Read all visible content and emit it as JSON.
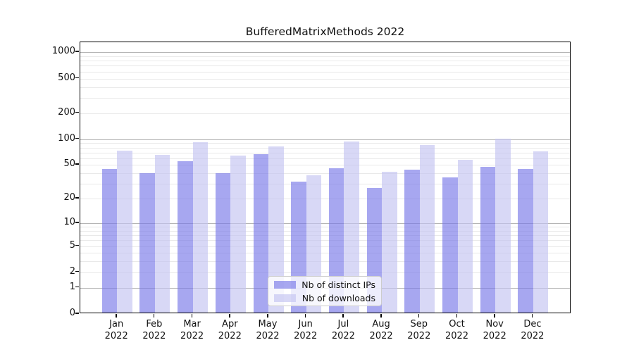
{
  "chart_data": {
    "type": "bar",
    "title": "BufferedMatrixMethods 2022",
    "year_label": "2022",
    "categories": [
      "Jan",
      "Feb",
      "Mar",
      "Apr",
      "May",
      "Jun",
      "Jul",
      "Aug",
      "Sep",
      "Oct",
      "Nov",
      "Dec"
    ],
    "series": [
      {
        "name": "Nb of distinct IPs",
        "values": [
          45,
          40,
          55,
          40,
          67,
          32,
          46,
          27,
          44,
          36,
          48,
          45
        ],
        "color": "rgba(120,120,232,0.65)"
      },
      {
        "name": "Nb of downloads",
        "values": [
          73,
          66,
          92,
          65,
          83,
          38,
          94,
          42,
          85,
          58,
          101,
          72
        ],
        "color": "rgba(195,195,241,0.65)"
      }
    ],
    "yticks": [
      0,
      1,
      2,
      5,
      10,
      20,
      50,
      100,
      200,
      500,
      1000
    ],
    "scale": "log1p",
    "ylim": [
      0,
      1290
    ],
    "grid": {
      "major_ticks": [
        1,
        10,
        100,
        1000
      ],
      "minor_ticks": [
        2,
        3,
        4,
        5,
        6,
        7,
        8,
        9,
        20,
        30,
        40,
        50,
        60,
        70,
        80,
        90,
        200,
        300,
        400,
        500,
        600,
        700,
        800,
        900
      ],
      "major_color": "#b5b5b5",
      "minor_color": "#e9e9e9"
    },
    "legend_position": "lower center",
    "colors": {
      "distinct_ips_bar": "rgba(120,120,232,0.65)",
      "downloads_bar": "rgba(195,195,241,0.65)",
      "axis": "#000000",
      "text": "#111111"
    }
  }
}
